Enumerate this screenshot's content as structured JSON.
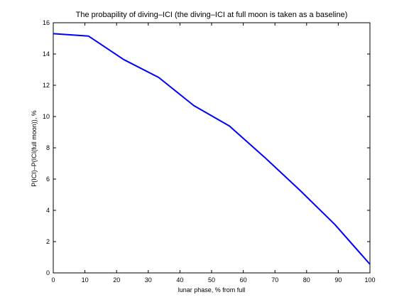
{
  "chart_data": {
    "type": "line",
    "title": "The probapility of diving–ICI (the diving–ICI at full moon is taken as a baseline)",
    "xlabel": "lunar phase, % from full",
    "ylabel": "P(ICI)–P(ICI(full moon)), %",
    "xlim": [
      0,
      100
    ],
    "ylim": [
      0,
      16
    ],
    "xticks": [
      0,
      10,
      20,
      30,
      40,
      50,
      60,
      70,
      80,
      90,
      100
    ],
    "yticks": [
      0,
      2,
      4,
      6,
      8,
      10,
      12,
      14,
      16
    ],
    "grid": false,
    "series": [
      {
        "color": "#0000ff",
        "x": [
          0,
          11.1,
          22.2,
          33.3,
          44.4,
          55.6,
          66.7,
          77.8,
          88.9,
          100
        ],
        "y": [
          15.3,
          15.15,
          13.65,
          12.5,
          10.7,
          9.4,
          7.4,
          5.3,
          3.1,
          0.55
        ]
      }
    ]
  }
}
